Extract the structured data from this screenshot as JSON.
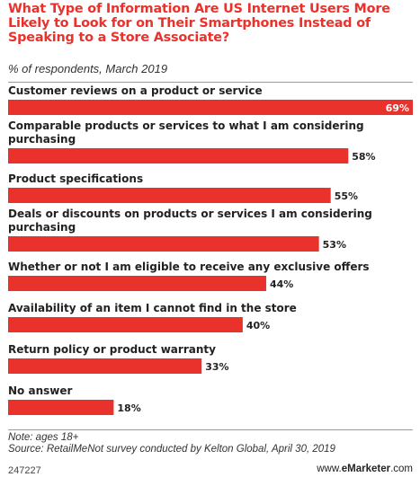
{
  "header": {
    "title": "What Type of Information Are US Internet Users More Likely to Look for on Their Smartphones Instead of Speaking to a Store Associate?",
    "subtitle": "% of respondents, March 2019"
  },
  "chart_data": {
    "type": "bar",
    "orientation": "horizontal",
    "title": "What Type of Information Are US Internet Users More Likely to Look for on Their Smartphones Instead of Speaking to a Store Associate?",
    "subtitle": "% of respondents, March 2019",
    "categories": [
      "Customer reviews on a product or service",
      "Comparable products or services to what I am considering purchasing",
      "Product specifications",
      "Deals or discounts on products or services I am considering purchasing",
      "Whether or not I am eligible to receive any exclusive offers",
      "Availability of an item I cannot find in the store",
      "Return policy or product warranty",
      "No answer"
    ],
    "category_lines": [
      [
        "Customer reviews on a product or service"
      ],
      [
        "Comparable products or services to what I am considering",
        "purchasing"
      ],
      [
        "Product specifications"
      ],
      [
        "Deals or discounts on products or services I am considering",
        "purchasing"
      ],
      [
        "Whether or not I am eligible to receive any exclusive offers"
      ],
      [
        "Availability of an item I cannot find in the store"
      ],
      [
        "Return policy or product warranty"
      ],
      [
        "No answer"
      ]
    ],
    "values": [
      69,
      58,
      55,
      53,
      44,
      40,
      33,
      18
    ],
    "value_labels": [
      "69%",
      "58%",
      "55%",
      "53%",
      "44%",
      "40%",
      "33%",
      "18%"
    ],
    "xlim": [
      0,
      69
    ],
    "bar_color": "#e8322b",
    "grid": false,
    "legend": "none"
  },
  "footer": {
    "note": "Note: ages 18+",
    "source": "Source: RetailMeNot survey conducted by Kelton Global, April 30, 2019",
    "chart_id": "247227",
    "brand_prefix": "www.",
    "brand_name": "eMarketer",
    "brand_suffix": ".com"
  }
}
